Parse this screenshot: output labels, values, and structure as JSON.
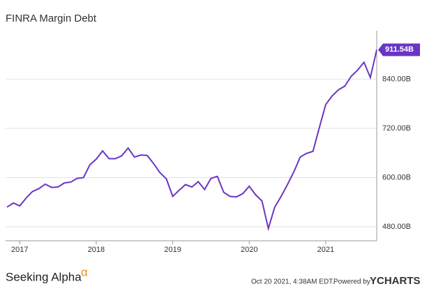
{
  "chart_data": {
    "type": "line",
    "title": "FINRA Margin Debt",
    "categories": [
      null,
      null,
      "2017",
      null,
      null,
      null,
      null,
      null,
      null,
      null,
      null,
      null,
      null,
      null,
      "2018",
      null,
      null,
      null,
      null,
      null,
      null,
      null,
      null,
      null,
      null,
      null,
      "2019",
      null,
      null,
      null,
      null,
      null,
      null,
      null,
      null,
      null,
      null,
      null,
      "2020",
      null,
      null,
      null,
      null,
      null,
      null,
      null,
      null,
      null,
      null,
      null,
      "2021",
      null,
      null,
      null,
      null,
      null,
      null,
      null,
      null
    ],
    "series": [
      {
        "name": "FINRA Margin Debt",
        "color": "#6a35c7",
        "values": [
          528,
          538,
          531,
          550,
          566,
          573,
          584,
          576,
          577,
          587,
          589,
          598,
          600,
          631,
          645,
          665,
          646,
          646,
          653,
          672,
          650,
          655,
          654,
          634,
          612,
          597,
          554,
          569,
          583,
          577,
          590,
          571,
          598,
          603,
          564,
          554,
          553,
          561,
          579,
          558,
          543,
          476,
          528,
          554,
          583,
          614,
          650,
          659,
          664,
          722,
          778,
          799,
          814,
          823,
          847,
          862,
          881,
          844,
          911.54
        ],
        "value_labels": [
          null,
          null,
          null,
          null,
          null,
          null,
          null,
          null,
          null,
          null,
          null,
          null,
          null,
          null,
          null,
          null,
          null,
          null,
          null,
          null,
          null,
          null,
          null,
          null,
          null,
          null,
          null,
          null,
          null,
          null,
          null,
          null,
          null,
          null,
          null,
          null,
          null,
          null,
          null,
          null,
          null,
          null,
          null,
          null,
          null,
          null,
          null,
          null,
          null,
          null,
          null,
          null,
          null,
          null,
          null,
          null,
          null,
          null,
          "911.54B"
        ]
      }
    ],
    "ylim": [
      446,
      958
    ],
    "yticks": [
      {
        "value": 480,
        "label": "480.00B"
      },
      {
        "value": 600,
        "label": "600.00B"
      },
      {
        "value": 720,
        "label": "720.00B"
      },
      {
        "value": 840,
        "label": "840.00B"
      }
    ],
    "grid": true
  },
  "footer": {
    "brand": "Seeking Alpha",
    "brand_mark": "α",
    "timestamp": "Oct 20 2021, 4:38AM EDT.",
    "powered": "Powered by",
    "provider": "YCHARTS"
  }
}
